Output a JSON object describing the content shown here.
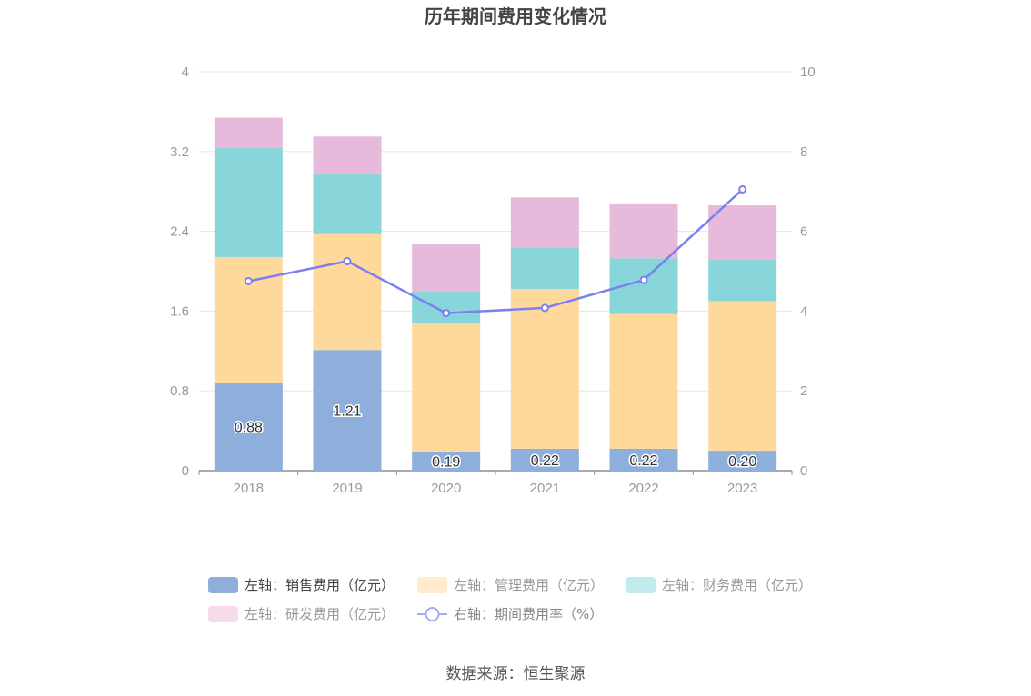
{
  "chart_data": {
    "type": "bar",
    "title": "历年期间费用变化情况",
    "categories": [
      "2018",
      "2019",
      "2020",
      "2021",
      "2022",
      "2023"
    ],
    "stacked": true,
    "series": [
      {
        "name": "左轴：销售费用（亿元）",
        "axis": "left",
        "type": "bar",
        "color": "#8eaedb",
        "values": [
          0.88,
          1.21,
          0.19,
          0.22,
          0.22,
          0.2
        ],
        "show_labels": true
      },
      {
        "name": "左轴：管理费用（亿元）",
        "axis": "left",
        "type": "bar",
        "color": "#ffd99c",
        "values": [
          1.26,
          1.17,
          1.29,
          1.6,
          1.35,
          1.5
        ]
      },
      {
        "name": "左轴：财务费用（亿元）",
        "axis": "left",
        "type": "bar",
        "color": "#88d6d9",
        "values": [
          1.1,
          0.59,
          0.32,
          0.42,
          0.56,
          0.42
        ]
      },
      {
        "name": "左轴：研发费用（亿元）",
        "axis": "left",
        "type": "bar",
        "color": "#e7b9da",
        "values": [
          0.3,
          0.38,
          0.47,
          0.5,
          0.55,
          0.54
        ]
      },
      {
        "name": "右轴：期间费用率（%）",
        "axis": "right",
        "type": "line",
        "color": "#7b7ff0",
        "values": [
          4.75,
          5.25,
          3.95,
          4.08,
          4.78,
          7.05
        ]
      }
    ],
    "y_left": {
      "min": 0,
      "max": 4,
      "ticks": [
        "0",
        "0.8",
        "1.6",
        "2.4",
        "3.2",
        "4"
      ]
    },
    "y_right": {
      "min": 0,
      "max": 10,
      "ticks": [
        "0",
        "2",
        "4",
        "6",
        "8",
        "10"
      ]
    },
    "grid": true,
    "legend_position": "bottom"
  },
  "source_text": "数据来源：恒生聚源"
}
